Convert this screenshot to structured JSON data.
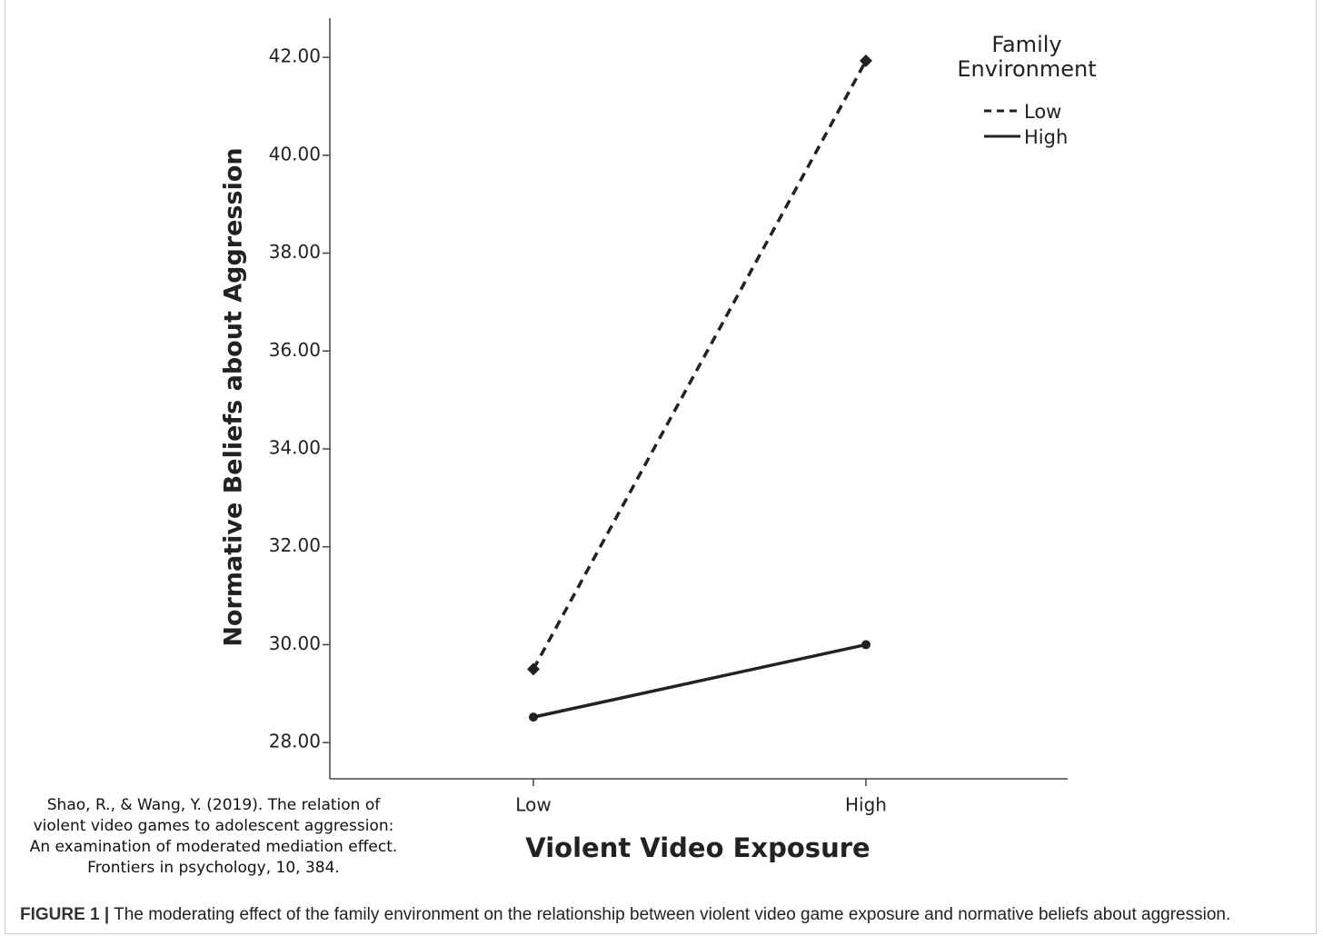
{
  "chart_data": {
    "type": "line",
    "x_label": "Violent Video Exposure",
    "y_label": "Normative Beliefs about Aggression",
    "categories": [
      "Low",
      "High"
    ],
    "series": [
      {
        "name": "Low",
        "color": "#222222",
        "dash": true,
        "marker": "diamond",
        "values": [
          29.5,
          41.93
        ]
      },
      {
        "name": "High",
        "color": "#222222",
        "dash": false,
        "marker": "circle",
        "values": [
          28.52,
          30.0
        ]
      }
    ],
    "legend_title": "Family Environment",
    "legend_position": "upper right",
    "ylim": [
      27.26,
      42.8
    ],
    "yticks": [
      {
        "value": 28,
        "label": "28.00"
      },
      {
        "value": 30,
        "label": "30.00"
      },
      {
        "value": 32,
        "label": "32.00"
      },
      {
        "value": 34,
        "label": "34.00"
      },
      {
        "value": 36,
        "label": "36.00"
      },
      {
        "value": 38,
        "label": "38.00"
      },
      {
        "value": 40,
        "label": "40.00"
      },
      {
        "value": 42,
        "label": "42.00"
      }
    ],
    "grid": false
  },
  "citation": [
    "Shao, R., & Wang, Y. (2019). The relation of",
    "violent video games to adolescent aggression:",
    "An examination of moderated mediation effect.",
    "Frontiers in psychology, 10, 384."
  ],
  "caption": {
    "label": "FIGURE 1",
    "separator": "|",
    "text": "The moderating effect of the family environment on the relationship between violent video game exposure and normative beliefs about aggression."
  }
}
